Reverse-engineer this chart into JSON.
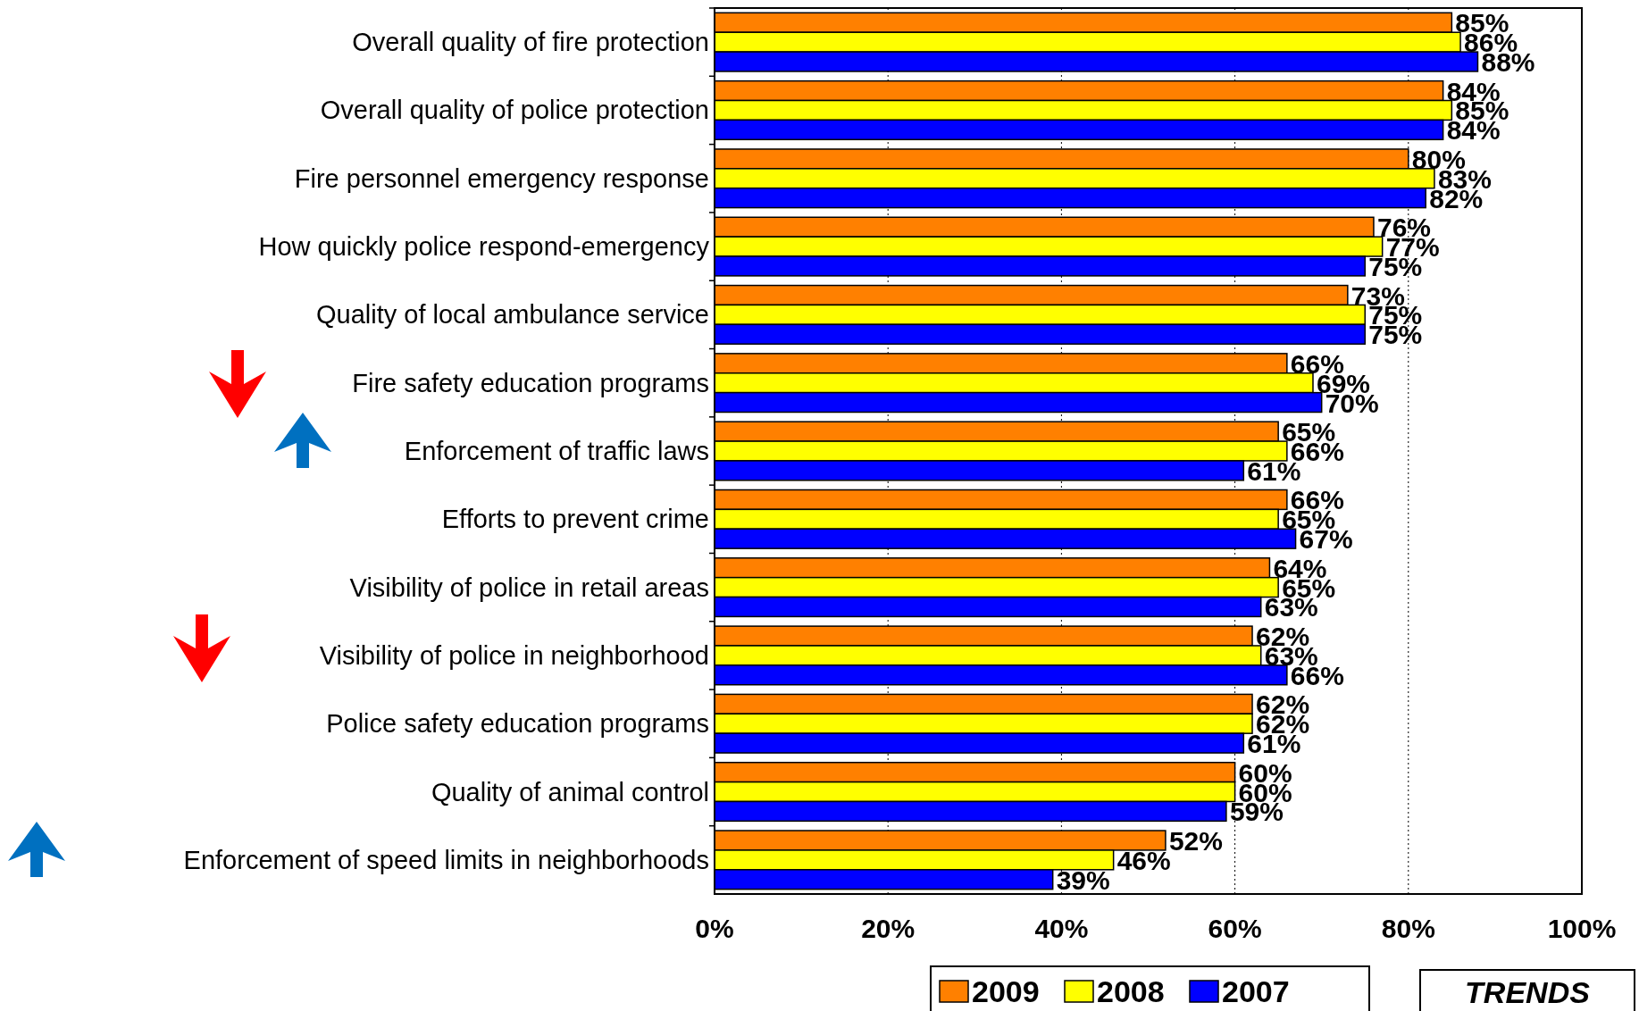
{
  "chart_data": {
    "type": "bar",
    "orientation": "horizontal",
    "categories": [
      "Overall quality of fire protection",
      "Overall quality of police protection",
      "Fire personnel emergency response",
      "How quickly police respond-emergency",
      "Quality of local ambulance service",
      "Fire safety education programs",
      "Enforcement of traffic laws",
      "Efforts to prevent crime",
      "Visibility of police in retail areas",
      "Visibility of police in neighborhood",
      "Police safety education programs",
      "Quality of animal control",
      "Enforcement of speed limits in neighborhoods"
    ],
    "series": [
      {
        "name": "2009",
        "color": "#ff8000",
        "values": [
          85,
          84,
          80,
          76,
          73,
          66,
          65,
          66,
          64,
          62,
          62,
          60,
          52
        ],
        "value_labels": [
          "85%",
          "84%",
          "80%",
          "76%",
          "73%",
          "66%",
          "65%",
          "66%",
          "64%",
          "62%",
          "62%",
          "60%",
          "52%"
        ]
      },
      {
        "name": "2008",
        "color": "#ffff00",
        "values": [
          86,
          85,
          83,
          77,
          75,
          69,
          66,
          65,
          65,
          63,
          62,
          60,
          46
        ],
        "value_labels": [
          "86%",
          "85%",
          "83%",
          "77%",
          "75%",
          "69%",
          "66%",
          "65%",
          "65%",
          "63%",
          "62%",
          "60%",
          "46%"
        ]
      },
      {
        "name": "2007",
        "color": "#0000ff",
        "values": [
          88,
          84,
          82,
          75,
          75,
          70,
          61,
          67,
          63,
          66,
          61,
          59,
          39
        ],
        "value_labels": [
          "88%",
          "84%",
          "82%",
          "75%",
          "75%",
          "70%",
          "61%",
          "67%",
          "63%",
          "66%",
          "61%",
          "59%",
          "39%"
        ]
      }
    ],
    "xlim": [
      0,
      100
    ],
    "xticks": [
      {
        "value": 0,
        "label": "0%"
      },
      {
        "value": 20,
        "label": "20%"
      },
      {
        "value": 40,
        "label": "40%"
      },
      {
        "value": 60,
        "label": "60%"
      },
      {
        "value": 80,
        "label": "80%"
      },
      {
        "value": 100,
        "label": "100%"
      }
    ],
    "grid": "x",
    "legend": "bottom",
    "annotations": [
      "TRENDS"
    ]
  }
}
